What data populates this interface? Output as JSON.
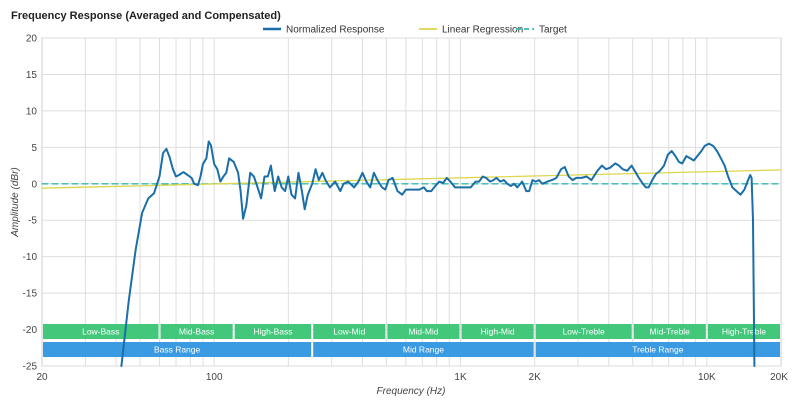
{
  "chart_data": {
    "type": "line",
    "title": "Frequency Response (Averaged and Compensated)",
    "xlabel": "Frequency (Hz)",
    "ylabel": "Amplitude (dBr)",
    "xscale": "log",
    "xlim": [
      20,
      20000
    ],
    "ylim": [
      -25,
      20
    ],
    "grid": true,
    "legend_position": "top-center",
    "x_ticks": [
      {
        "value": 20,
        "label": "20"
      },
      {
        "value": 100,
        "label": "100"
      },
      {
        "value": 1000,
        "label": "1K"
      },
      {
        "value": 2000,
        "label": "2K"
      },
      {
        "value": 10000,
        "label": "10K"
      },
      {
        "value": 20000,
        "label": "20K"
      }
    ],
    "y_ticks": [
      20,
      15,
      10,
      5,
      0,
      -5,
      -10,
      -15,
      -20,
      -25
    ],
    "series": [
      {
        "name": "Normalized Response",
        "color": "#1a6fa8",
        "style": "solid",
        "points": [
          [
            42,
            -25
          ],
          [
            45,
            -16
          ],
          [
            48,
            -9
          ],
          [
            51,
            -4
          ],
          [
            54,
            -2
          ],
          [
            57,
            -1.3
          ],
          [
            60,
            1
          ],
          [
            62,
            4.2
          ],
          [
            64,
            4.8
          ],
          [
            66,
            3.6
          ],
          [
            68,
            2
          ],
          [
            70,
            1
          ],
          [
            72,
            1.2
          ],
          [
            75,
            1.6
          ],
          [
            78,
            1.2
          ],
          [
            81,
            0.8
          ],
          [
            83,
            0
          ],
          [
            86,
            -0.2
          ],
          [
            88,
            1
          ],
          [
            90,
            2.7
          ],
          [
            93,
            3.5
          ],
          [
            95,
            5.8
          ],
          [
            97,
            5.3
          ],
          [
            100,
            2.7
          ],
          [
            103,
            2
          ],
          [
            106,
            0.3
          ],
          [
            109,
            1
          ],
          [
            112,
            1.5
          ],
          [
            115,
            3.5
          ],
          [
            120,
            3
          ],
          [
            125,
            1.5
          ],
          [
            128,
            -1
          ],
          [
            131,
            -4.8
          ],
          [
            135,
            -3
          ],
          [
            140,
            1.5
          ],
          [
            145,
            1
          ],
          [
            150,
            -0.5
          ],
          [
            155,
            -2
          ],
          [
            160,
            1
          ],
          [
            165,
            1
          ],
          [
            170,
            2.5
          ],
          [
            176,
            -1
          ],
          [
            182,
            1
          ],
          [
            188,
            -0.5
          ],
          [
            194,
            -1
          ],
          [
            200,
            1
          ],
          [
            206,
            -1.5
          ],
          [
            213,
            -2
          ],
          [
            220,
            1.5
          ],
          [
            227,
            -1
          ],
          [
            233,
            -3.5
          ],
          [
            240,
            -1.5
          ],
          [
            250,
            0
          ],
          [
            258,
            2
          ],
          [
            266,
            0.5
          ],
          [
            275,
            1.5
          ],
          [
            283,
            0.5
          ],
          [
            295,
            -0.5
          ],
          [
            310,
            0.3
          ],
          [
            325,
            -1
          ],
          [
            335,
            0
          ],
          [
            350,
            0.3
          ],
          [
            370,
            -0.5
          ],
          [
            385,
            0.3
          ],
          [
            400,
            1.5
          ],
          [
            415,
            0.3
          ],
          [
            430,
            -0.5
          ],
          [
            445,
            1.5
          ],
          [
            460,
            0.5
          ],
          [
            480,
            -0.5
          ],
          [
            495,
            -0.8
          ],
          [
            510,
            0.5
          ],
          [
            530,
            0.8
          ],
          [
            555,
            -1
          ],
          [
            580,
            -1.5
          ],
          [
            600,
            -0.8
          ],
          [
            625,
            -0.8
          ],
          [
            650,
            -0.8
          ],
          [
            680,
            -0.8
          ],
          [
            710,
            -0.5
          ],
          [
            730,
            -1
          ],
          [
            760,
            -1
          ],
          [
            790,
            -0.3
          ],
          [
            820,
            0.3
          ],
          [
            850,
            0.1
          ],
          [
            880,
            0.8
          ],
          [
            910,
            0.3
          ],
          [
            950,
            -0.5
          ],
          [
            990,
            -0.5
          ],
          [
            1020,
            -0.5
          ],
          [
            1060,
            -0.5
          ],
          [
            1100,
            -0.5
          ],
          [
            1150,
            0.3
          ],
          [
            1190,
            0.3
          ],
          [
            1230,
            1
          ],
          [
            1270,
            0.8
          ],
          [
            1320,
            0.3
          ],
          [
            1360,
            0.5
          ],
          [
            1400,
            0.8
          ],
          [
            1450,
            0.3
          ],
          [
            1500,
            0.5
          ],
          [
            1550,
            0
          ],
          [
            1600,
            -0.3
          ],
          [
            1650,
            0
          ],
          [
            1700,
            -0.5
          ],
          [
            1780,
            0.3
          ],
          [
            1850,
            -1
          ],
          [
            1900,
            -1
          ],
          [
            1960,
            0.5
          ],
          [
            2020,
            0.3
          ],
          [
            2080,
            0.5
          ],
          [
            2150,
            0
          ],
          [
            2250,
            0.3
          ],
          [
            2350,
            0.5
          ],
          [
            2450,
            0.8
          ],
          [
            2560,
            2
          ],
          [
            2650,
            2.3
          ],
          [
            2750,
            1
          ],
          [
            2850,
            0.5
          ],
          [
            2950,
            0.8
          ],
          [
            3100,
            0.8
          ],
          [
            3250,
            1
          ],
          [
            3400,
            0.5
          ],
          [
            3600,
            1.8
          ],
          [
            3750,
            2.5
          ],
          [
            3900,
            2
          ],
          [
            4050,
            2.2
          ],
          [
            4250,
            2.8
          ],
          [
            4400,
            2.5
          ],
          [
            4550,
            2
          ],
          [
            4750,
            1.8
          ],
          [
            4950,
            2.5
          ],
          [
            5150,
            1.5
          ],
          [
            5300,
            0.8
          ],
          [
            5500,
            0
          ],
          [
            5650,
            -0.5
          ],
          [
            5800,
            -0.5
          ],
          [
            6000,
            0.5
          ],
          [
            6200,
            1.3
          ],
          [
            6450,
            1.8
          ],
          [
            6700,
            2.5
          ],
          [
            6950,
            4
          ],
          [
            7200,
            4.5
          ],
          [
            7450,
            3.8
          ],
          [
            7700,
            3
          ],
          [
            7950,
            2.8
          ],
          [
            8250,
            3.8
          ],
          [
            8550,
            3.5
          ],
          [
            8850,
            3.2
          ],
          [
            9150,
            3.8
          ],
          [
            9500,
            4.5
          ],
          [
            9800,
            5.2
          ],
          [
            10200,
            5.5
          ],
          [
            10600,
            5.2
          ],
          [
            11000,
            4.5
          ],
          [
            11400,
            3.5
          ],
          [
            11800,
            2.5
          ],
          [
            12200,
            1
          ],
          [
            12700,
            -0.5
          ],
          [
            13200,
            -1
          ],
          [
            13700,
            -1.5
          ],
          [
            14200,
            -0.8
          ],
          [
            14700,
            0.5
          ],
          [
            15000,
            1.2
          ],
          [
            15200,
            0.8
          ],
          [
            15400,
            -5
          ],
          [
            15600,
            -25
          ]
        ]
      },
      {
        "name": "Linear Regression",
        "color": "#dcd64a",
        "style": "solid",
        "points": [
          [
            20,
            -0.6
          ],
          [
            20000,
            1.9
          ]
        ]
      },
      {
        "name": "Target",
        "color": "#37b9b3",
        "style": "dashed",
        "points": [
          [
            20,
            0
          ],
          [
            20000,
            0
          ]
        ]
      }
    ],
    "bands": [
      {
        "row": 1,
        "label": "Low-Bass",
        "from": 20,
        "to": 60,
        "color": "#38c474"
      },
      {
        "row": 1,
        "label": "Mid-Bass",
        "from": 60,
        "to": 120,
        "color": "#38c474"
      },
      {
        "row": 1,
        "label": "High-Bass",
        "from": 120,
        "to": 250,
        "color": "#38c474"
      },
      {
        "row": 1,
        "label": "Low-Mid",
        "from": 250,
        "to": 500,
        "color": "#38c474"
      },
      {
        "row": 1,
        "label": "Mid-Mid",
        "from": 500,
        "to": 1000,
        "color": "#38c474"
      },
      {
        "row": 1,
        "label": "High-Mid",
        "from": 1000,
        "to": 2000,
        "color": "#38c474"
      },
      {
        "row": 1,
        "label": "Low-Treble",
        "from": 2000,
        "to": 5000,
        "color": "#38c474"
      },
      {
        "row": 1,
        "label": "Mid-Treble",
        "from": 5000,
        "to": 10000,
        "color": "#38c474"
      },
      {
        "row": 1,
        "label": "High-Treble",
        "from": 10000,
        "to": 20000,
        "color": "#38c474"
      },
      {
        "row": 2,
        "label": "Bass Range",
        "from": 20,
        "to": 250,
        "color": "#2f95e0"
      },
      {
        "row": 2,
        "label": "Mid Range",
        "from": 250,
        "to": 2000,
        "color": "#2f95e0"
      },
      {
        "row": 2,
        "label": "Treble Range",
        "from": 2000,
        "to": 20000,
        "color": "#2f95e0"
      }
    ]
  }
}
